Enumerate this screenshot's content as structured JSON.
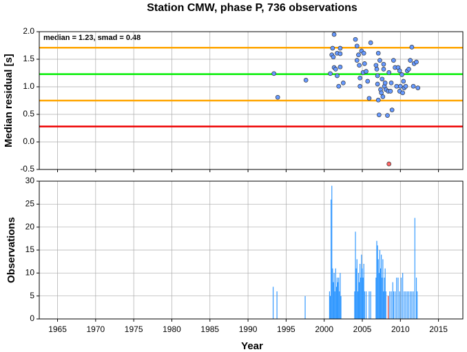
{
  "chart_data": [
    {
      "type": "scatter",
      "title": "Station CMW, phase P, 736 observations",
      "annotation": "median = 1.23, smad = 0.48",
      "ylabel": "Median residual [s]",
      "xlim": [
        1962.6,
        2018.2
      ],
      "ylim": [
        -0.5,
        2.0
      ],
      "xticks": [
        1965,
        1970,
        1975,
        1980,
        1985,
        1990,
        1995,
        2000,
        2005,
        2010,
        2015
      ],
      "yticks": [
        {
          "value": 2,
          "label": "2.0"
        },
        1.5,
        {
          "value": 1,
          "label": "1.0"
        },
        0.5,
        {
          "value": 0,
          "label": "0.0"
        },
        -0.5
      ],
      "grid": true,
      "hlines": [
        {
          "value": 1.71,
          "color": "#ffa500"
        },
        {
          "value": 1.23,
          "color": "#00ee00"
        },
        {
          "value": 0.75,
          "color": "#ffa500"
        },
        {
          "value": 0.28,
          "color": "#ee0000"
        }
      ],
      "series": [
        {
          "color": "#6699ff",
          "x": [
            1993.4,
            1993.9,
            1997.6,
            2000.8,
            2001.0,
            2001.1,
            2001.3,
            2001.2,
            2001.3,
            2001.5,
            2001.7,
            2001.7,
            2001.9,
            2002.1,
            2002.1,
            2002.1,
            2002.5,
            2004.1,
            2004.3,
            2004.3,
            2004.5,
            2004.6,
            2004.7,
            2004.7,
            2004.9,
            2005.1,
            2005.2,
            2005.3,
            2005.5,
            2005.7,
            2005.9,
            2006.1,
            2006.8,
            2006.9,
            2007.0,
            2007.0,
            2007.1,
            2007.1,
            2007.3,
            2007.4,
            2007.5,
            2007.6,
            2007.7,
            2007.2,
            2007.8,
            2007.8,
            2007.9,
            2008.0,
            2008.1,
            2008.3,
            2008.4,
            2008.5,
            2008.7,
            2008.8,
            2008.9,
            2009.1,
            2009.3,
            2009.5,
            2009.7,
            2009.9,
            2009.9,
            2010.0,
            2010.2,
            2010.3,
            2010.4,
            2010.5,
            2010.7,
            2010.9,
            2011.1,
            2011.3,
            2011.5,
            2011.7,
            2011.8,
            2012.1,
            2012.3
          ],
          "values": [
            1.24,
            0.81,
            1.12,
            1.24,
            1.58,
            1.7,
            1.95,
            1.54,
            1.35,
            1.32,
            1.2,
            1.61,
            1.01,
            1.7,
            1.6,
            1.36,
            1.07,
            1.86,
            1.74,
            1.48,
            1.58,
            1.39,
            1.16,
            1.01,
            1.65,
            1.26,
            1.61,
            1.42,
            1.28,
            1.1,
            0.79,
            1.8,
            1.39,
            1.32,
            1.2,
            1.05,
            0.76,
            1.61,
            1.48,
            0.95,
            0.89,
            1.14,
            0.82,
            0.49,
            1.41,
            1.32,
            1.01,
            1.07,
            0.95,
            0.48,
            0.92,
            1.26,
            0.92,
            1.07,
            0.58,
            1.48,
            1.35,
            1.01,
            1.35,
            0.92,
            1.29,
            1.01,
            1.22,
            0.89,
            1.1,
            0.98,
            1.01,
            1.29,
            1.32,
            1.48,
            1.72,
            1.01,
            1.42,
            1.45,
            0.98
          ]
        },
        {
          "color": "#ff6666",
          "x": [
            2008.5
          ],
          "values": [
            -0.4
          ]
        }
      ]
    },
    {
      "type": "bar",
      "xlabel": "Year",
      "ylabel": "Observations",
      "xlim": [
        1962.6,
        2018.2
      ],
      "ylim": [
        0,
        30
      ],
      "xticks": [
        1965,
        1970,
        1975,
        1980,
        1985,
        1990,
        1995,
        2000,
        2005,
        2010,
        2015
      ],
      "yticks": [
        0,
        5,
        10,
        15,
        20,
        25,
        30
      ],
      "grid": true,
      "series": [
        {
          "color": "#3399ff",
          "x": [
            1993.3,
            1993.8,
            1997.5,
            2000.7,
            2000.8,
            2000.9,
            2001.0,
            2001.1,
            2001.2,
            2001.3,
            2001.4,
            2001.5,
            2001.6,
            2001.7,
            2001.8,
            2001.9,
            2002.0,
            2002.1,
            2002.2,
            2004.0,
            2004.1,
            2004.2,
            2004.3,
            2004.4,
            2004.5,
            2004.6,
            2004.7,
            2004.8,
            2004.9,
            2005.0,
            2005.1,
            2005.2,
            2005.3,
            2005.5,
            2005.9,
            2006.1,
            2006.8,
            2006.9,
            2007.0,
            2007.1,
            2007.2,
            2007.3,
            2007.4,
            2007.5,
            2007.6,
            2007.7,
            2007.8,
            2007.9,
            2008.0,
            2008.1,
            2008.6,
            2008.8,
            2009.0,
            2009.1,
            2009.3,
            2009.5,
            2009.7,
            2009.9,
            2010.1,
            2010.3,
            2010.5,
            2010.7,
            2010.9,
            2011.1,
            2011.3,
            2011.5,
            2011.7,
            2011.9,
            2012.1,
            2012.2
          ],
          "values": [
            7,
            6,
            5,
            6,
            5,
            26,
            29,
            11,
            8,
            10,
            6,
            11,
            7,
            9,
            8,
            9,
            6,
            10,
            5,
            6,
            19,
            11,
            13,
            6,
            10,
            8,
            12,
            9,
            14,
            11,
            9,
            12,
            6,
            6,
            6,
            6,
            9,
            17,
            16,
            13,
            10,
            15,
            11,
            14,
            9,
            13,
            6,
            9,
            11,
            6,
            6,
            6,
            8,
            6,
            6,
            9,
            9,
            6,
            9,
            10,
            6,
            6,
            6,
            6,
            6,
            6,
            6,
            22,
            9,
            6
          ]
        },
        {
          "color": "#cc3333",
          "x": [
            2008.4
          ],
          "values": [
            5
          ]
        }
      ]
    }
  ]
}
